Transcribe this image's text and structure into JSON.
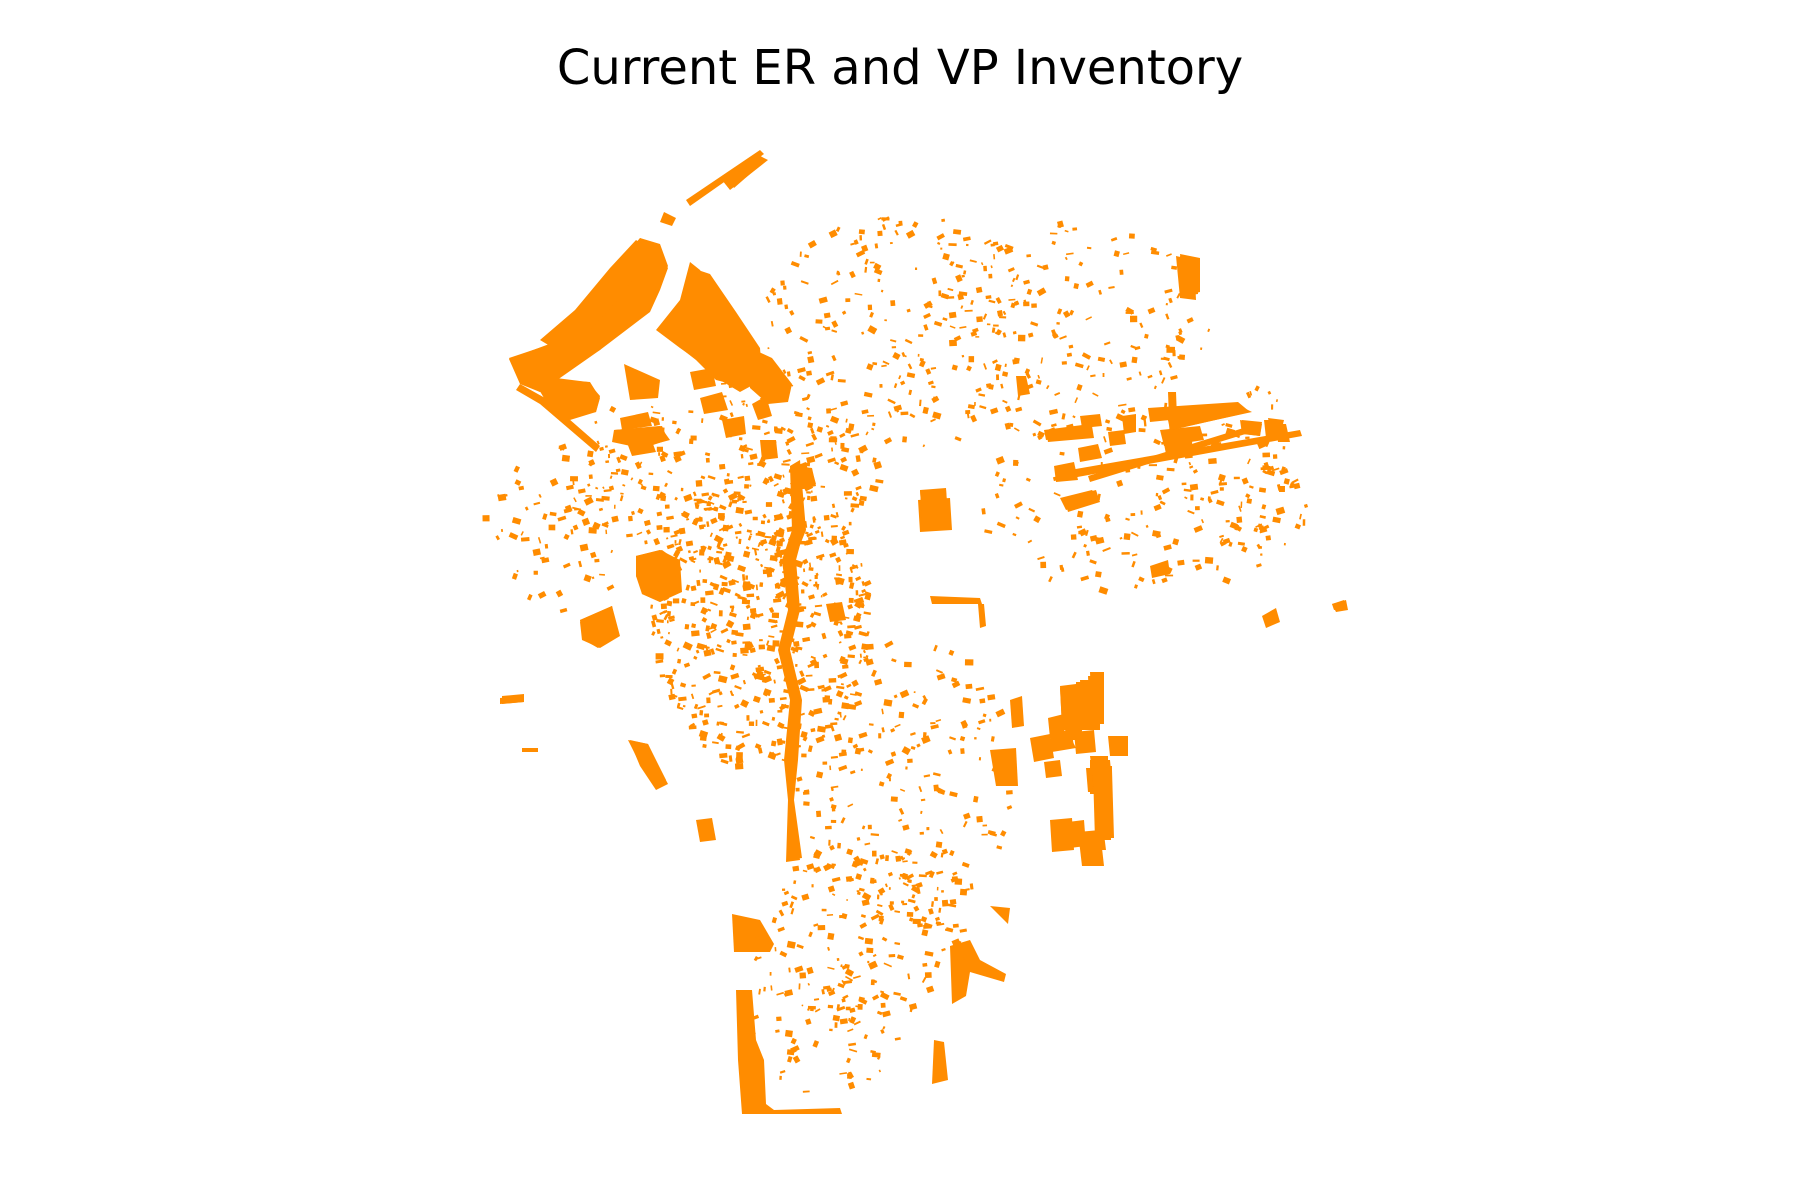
{
  "title": "Current ER and VP Inventory",
  "map": {
    "layer_name": "ER and VP parcels",
    "fill_color": "#FF8C00",
    "background_color": "#FFFFFF",
    "axes_visible": false,
    "legend_visible": false
  }
}
